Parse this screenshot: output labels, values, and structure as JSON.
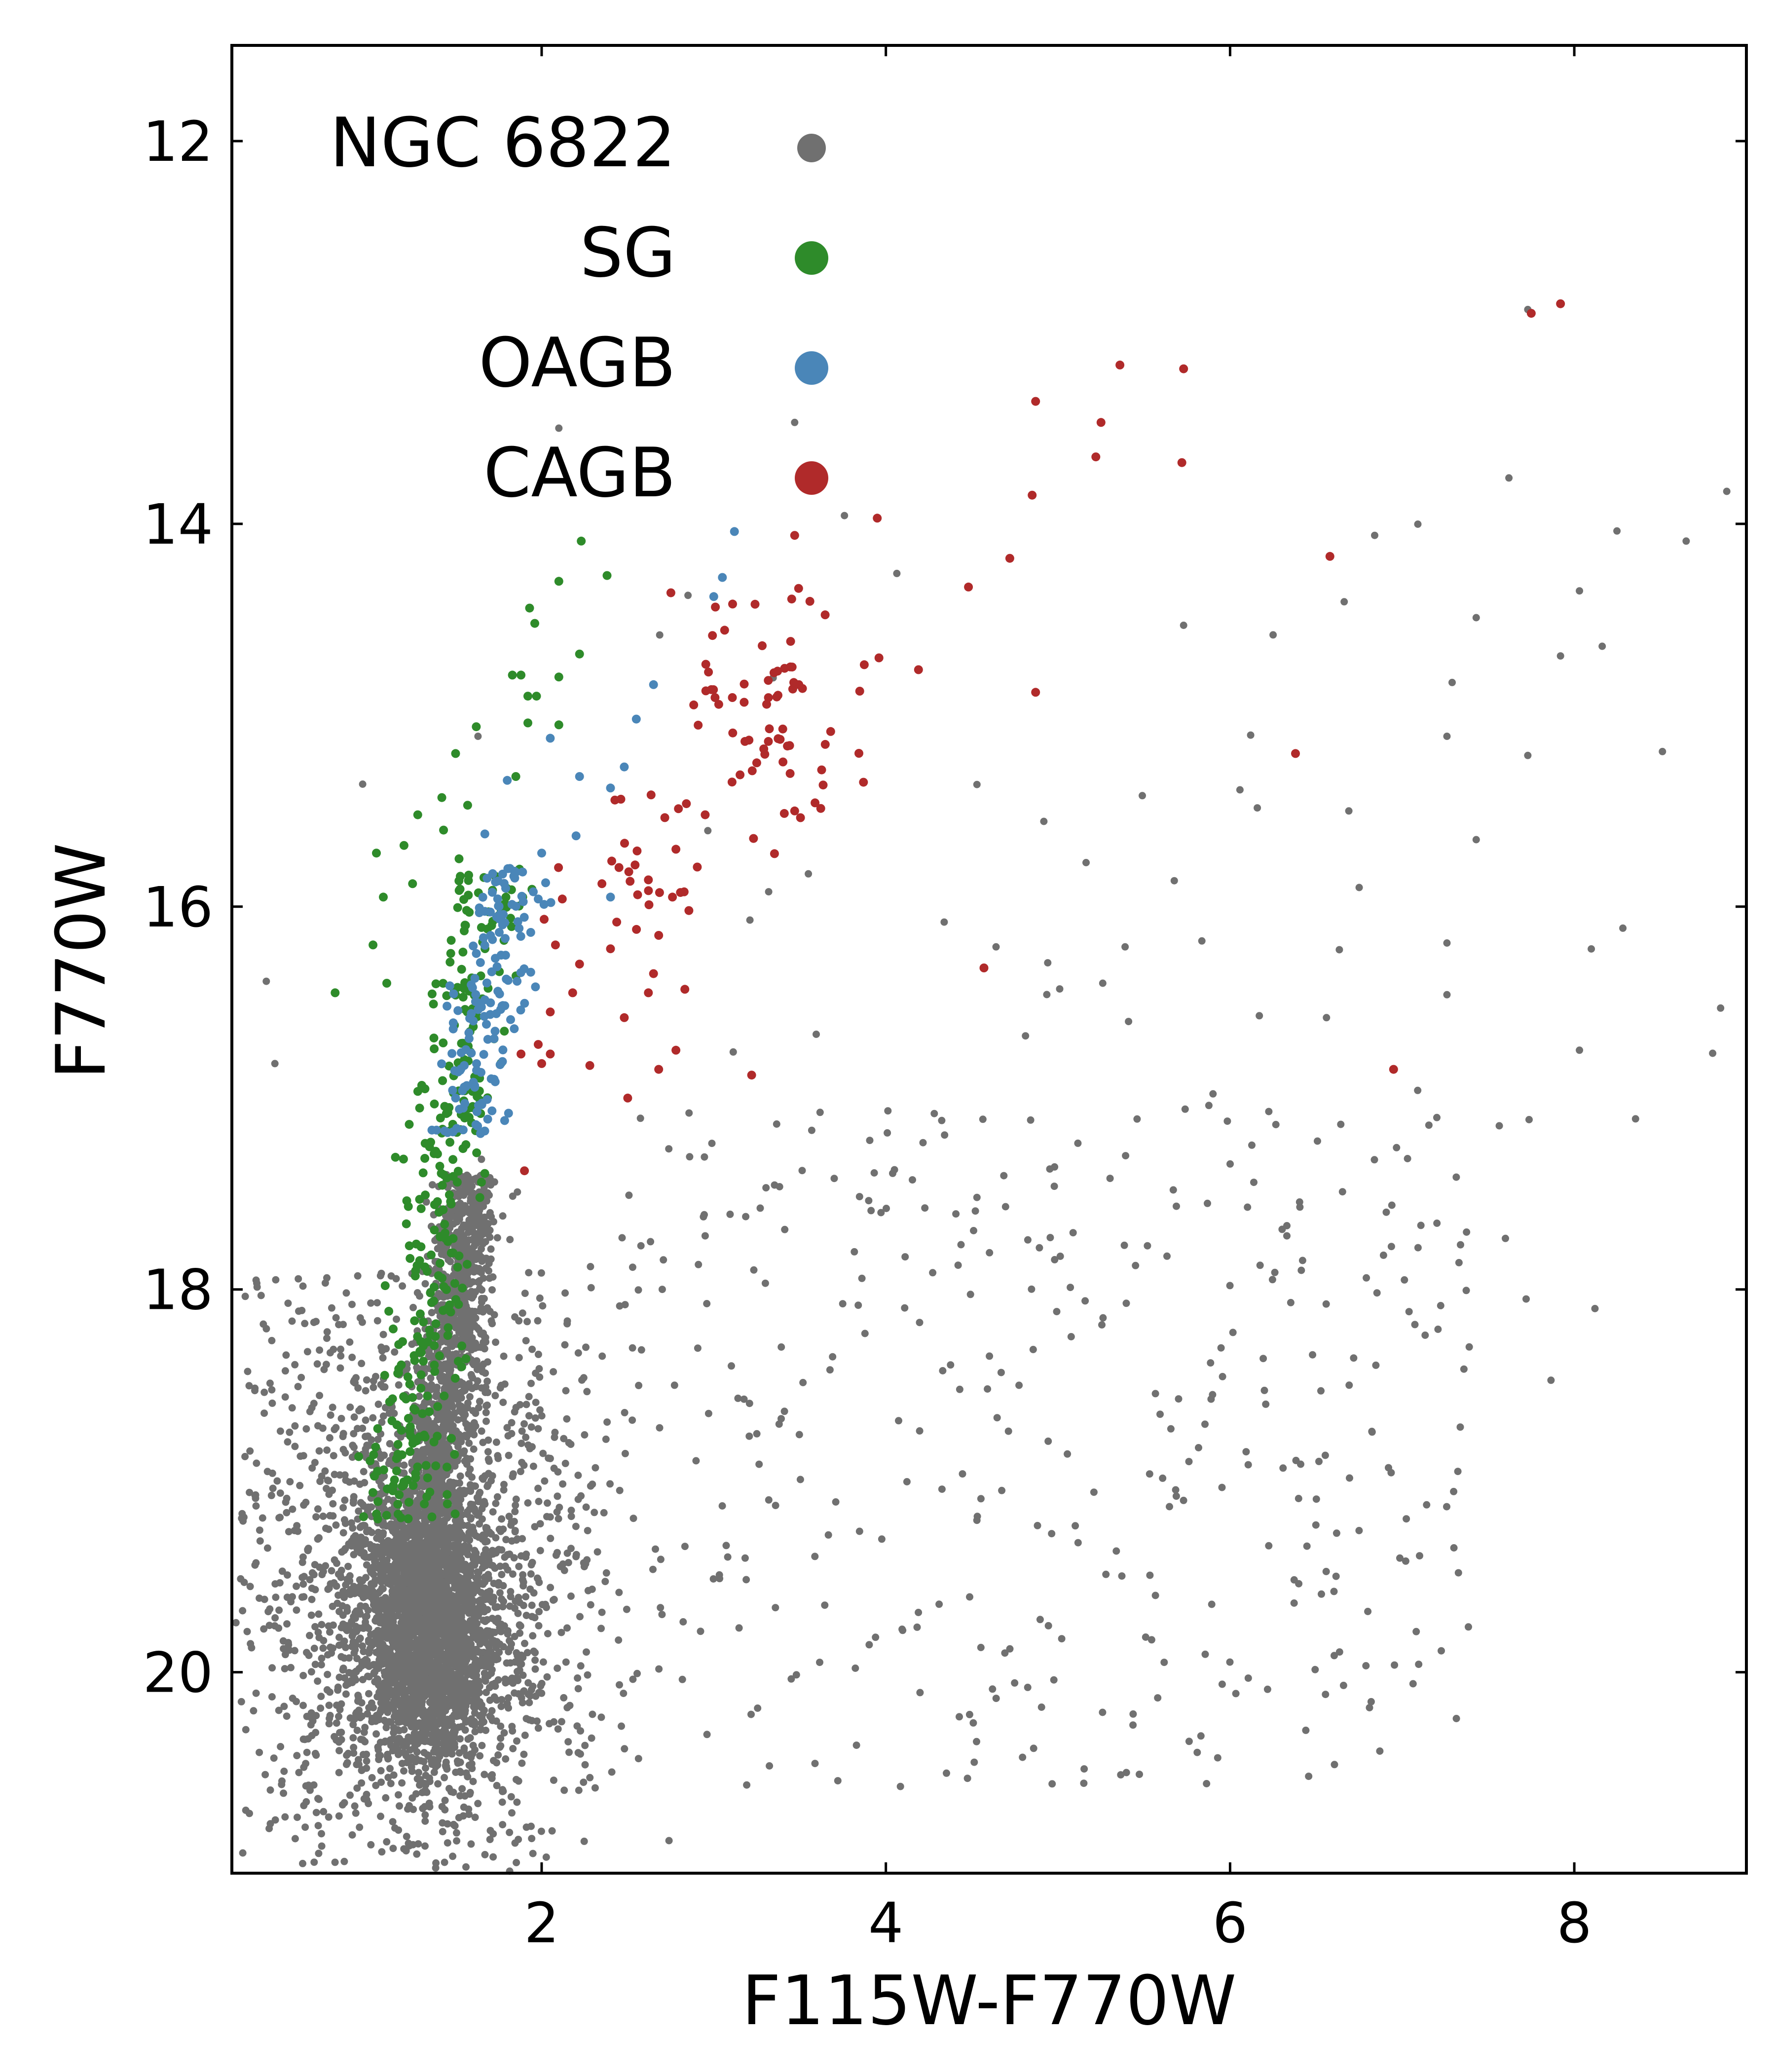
{
  "chart_data": {
    "type": "scatter",
    "title": "",
    "xlabel": "F115W-F770W",
    "ylabel": "F770W",
    "xlim": [
      0.2,
      9.0
    ],
    "ylim": [
      21.05,
      11.5
    ],
    "y_inverted": true,
    "xticks": [
      2,
      4,
      6,
      8
    ],
    "yticks": [
      12,
      14,
      16,
      18,
      20
    ],
    "grid": false,
    "legend_position": "top-left",
    "colors": {
      "NGC 6822": "#707070",
      "SG": "#2e8b2a",
      "OAGB": "#4a86b8",
      "CAGB": "#b02a2a",
      "axis": "#000000"
    },
    "series": [
      {
        "name": "NGC 6822",
        "approx_count": 6000,
        "regions": [
          {
            "kind": "core",
            "x_mean": 1.35,
            "x_sd": 0.2,
            "y_mean": 19.8,
            "y_sd": 0.35,
            "n": 2200
          },
          {
            "kind": "branch",
            "x_from": 1.6,
            "y_from": 17.4,
            "x_to": 1.3,
            "y_to": 19.6,
            "x_sd": 0.09,
            "n": 1300
          },
          {
            "kind": "halo",
            "x_mean": 1.3,
            "x_sd": 0.45,
            "y_mean": 19.6,
            "y_sd": 0.6,
            "n": 1300
          },
          {
            "kind": "uniform",
            "x_range": [
              0.25,
              2.3
            ],
            "y_range": [
              17.9,
              21.0
            ],
            "n": 450
          },
          {
            "kind": "uniform",
            "x_range": [
              2.2,
              7.4
            ],
            "y_range": [
              17.0,
              20.6
            ],
            "n": 380
          },
          {
            "kind": "uniform",
            "x_range": [
              2.5,
              8.9
            ],
            "y_range": [
              13.6,
              18.6
            ],
            "n": 60
          }
        ],
        "points": [
          [
            7.73,
            12.88
          ],
          [
            8.65,
            14.09
          ],
          [
            8.03,
            14.35
          ],
          [
            7.43,
            14.49
          ],
          [
            6.25,
            14.58
          ],
          [
            7.92,
            14.69
          ],
          [
            5.73,
            14.53
          ],
          [
            7.26,
            15.11
          ],
          [
            7.73,
            15.21
          ],
          [
            5.49,
            15.42
          ],
          [
            6.69,
            15.5
          ],
          [
            7.43,
            15.65
          ],
          [
            6.75,
            15.9
          ],
          [
            7.26,
            16.19
          ],
          [
            8.85,
            16.53
          ],
          [
            7.26,
            16.46
          ],
          [
            6.56,
            16.58
          ],
          [
            6.17,
            16.57
          ],
          [
            7.09,
            16.96
          ],
          [
            8.03,
            16.75
          ],
          [
            1.63,
            15.11
          ],
          [
            3.47,
            13.47
          ],
          [
            2.1,
            13.5
          ],
          [
            7.62,
            13.76
          ],
          [
            6.84,
            14.06
          ],
          [
            5.39,
            16.21
          ],
          [
            5.01,
            16.43
          ],
          [
            5.26,
            16.4
          ],
          [
            5.41,
            16.6
          ],
          [
            4.64,
            16.21
          ],
          [
            3.21,
            16.07
          ],
          [
            2.95,
            17.72
          ],
          [
            4.52,
            17.59
          ],
          [
            2.74,
            20.88
          ],
          [
            5.15,
            20.58
          ],
          [
            1.85,
            21.05
          ],
          [
            0.4,
            16.39
          ],
          [
            0.45,
            16.82
          ],
          [
            0.96,
            15.36
          ],
          [
            1.65,
            17.32
          ],
          [
            3.7,
            17.42
          ],
          [
            4.98,
            17.36
          ],
          [
            5.67,
            17.48
          ],
          [
            6.33,
            17.72
          ],
          [
            6.94,
            17.56
          ],
          [
            7.33,
            17.86
          ],
          [
            7.72,
            18.05
          ],
          [
            8.12,
            18.1
          ]
        ]
      },
      {
        "name": "SG",
        "approx_count": 420,
        "regions": [
          {
            "kind": "band",
            "x_top": 1.7,
            "y_top": 15.8,
            "x_bottom": 1.18,
            "y_bottom": 19.2,
            "x_sd": 0.12,
            "n": 330
          }
        ],
        "points": [
          [
            2.23,
            14.09
          ],
          [
            2.38,
            14.27
          ],
          [
            2.1,
            14.3
          ],
          [
            1.93,
            14.44
          ],
          [
            1.96,
            14.52
          ],
          [
            2.22,
            14.68
          ],
          [
            1.83,
            14.79
          ],
          [
            1.88,
            14.79
          ],
          [
            2.1,
            14.8
          ],
          [
            1.97,
            14.9
          ],
          [
            1.92,
            14.9
          ],
          [
            1.62,
            15.06
          ],
          [
            1.92,
            15.04
          ],
          [
            2.1,
            15.05
          ],
          [
            1.5,
            15.2
          ],
          [
            1.42,
            15.43
          ],
          [
            1.57,
            15.47
          ],
          [
            1.85,
            15.32
          ],
          [
            1.28,
            15.52
          ],
          [
            1.43,
            15.6
          ],
          [
            1.52,
            15.75
          ],
          [
            1.04,
            15.72
          ],
          [
            1.08,
            15.95
          ],
          [
            1.25,
            15.88
          ],
          [
            1.2,
            15.68
          ],
          [
            0.8,
            16.45
          ],
          [
            1.1,
            16.4
          ],
          [
            1.02,
            16.2
          ]
        ]
      },
      {
        "name": "OAGB",
        "approx_count": 190,
        "regions": [
          {
            "kind": "band",
            "x_top": 1.85,
            "y_top": 15.8,
            "x_bottom": 1.55,
            "y_bottom": 17.2,
            "x_sd": 0.1,
            "n": 150
          }
        ],
        "points": [
          [
            3.12,
            14.04
          ],
          [
            3.05,
            14.28
          ],
          [
            3.0,
            14.38
          ],
          [
            2.65,
            14.84
          ],
          [
            2.55,
            15.02
          ],
          [
            2.05,
            15.12
          ],
          [
            2.22,
            15.32
          ],
          [
            2.48,
            15.27
          ],
          [
            2.4,
            15.38
          ],
          [
            1.8,
            15.34
          ],
          [
            1.67,
            15.62
          ],
          [
            2.2,
            15.63
          ],
          [
            2.4,
            15.95
          ],
          [
            2.0,
            15.72
          ],
          [
            1.85,
            15.82
          ],
          [
            1.98,
            15.96
          ],
          [
            1.45,
            16.52
          ],
          [
            1.55,
            16.83
          ],
          [
            1.5,
            17.0
          ]
        ]
      },
      {
        "name": "CAGB",
        "approx_count": 175,
        "regions": [
          {
            "kind": "cloud",
            "x_mean": 3.35,
            "x_sd": 0.3,
            "y_mean": 15.0,
            "y_sd": 0.35,
            "n": 70
          },
          {
            "kind": "cloud",
            "x_mean": 2.55,
            "x_sd": 0.22,
            "y_mean": 15.75,
            "y_sd": 0.22,
            "n": 25
          }
        ],
        "points": [
          [
            7.92,
            12.85
          ],
          [
            7.75,
            12.9
          ],
          [
            5.73,
            13.19
          ],
          [
            5.36,
            13.17
          ],
          [
            4.87,
            13.36
          ],
          [
            5.25,
            13.47
          ],
          [
            5.22,
            13.65
          ],
          [
            5.72,
            13.68
          ],
          [
            4.85,
            13.85
          ],
          [
            3.95,
            13.97
          ],
          [
            3.47,
            14.06
          ],
          [
            4.72,
            14.18
          ],
          [
            6.58,
            14.17
          ],
          [
            4.48,
            14.33
          ],
          [
            3.24,
            14.42
          ],
          [
            3.96,
            14.7
          ],
          [
            4.87,
            14.88
          ],
          [
            6.38,
            15.2
          ],
          [
            3.47,
            15.5
          ],
          [
            3.87,
            15.35
          ],
          [
            2.95,
            15.52
          ],
          [
            2.78,
            15.7
          ],
          [
            2.76,
            15.95
          ],
          [
            2.12,
            15.96
          ],
          [
            2.35,
            15.88
          ],
          [
            2.62,
            15.86
          ],
          [
            2.68,
            16.15
          ],
          [
            2.08,
            16.2
          ],
          [
            2.4,
            16.22
          ],
          [
            2.22,
            16.3
          ],
          [
            2.65,
            16.35
          ],
          [
            2.18,
            16.45
          ],
          [
            2.48,
            16.58
          ],
          [
            2.62,
            16.45
          ],
          [
            4.57,
            16.32
          ],
          [
            2.05,
            16.55
          ],
          [
            1.98,
            16.72
          ],
          [
            1.88,
            16.77
          ],
          [
            2.0,
            16.82
          ],
          [
            2.05,
            16.77
          ],
          [
            2.28,
            16.83
          ],
          [
            2.78,
            16.75
          ],
          [
            2.68,
            16.85
          ],
          [
            3.22,
            16.88
          ],
          [
            2.5,
            17.0
          ],
          [
            6.95,
            16.85
          ],
          [
            1.9,
            17.38
          ]
        ]
      }
    ],
    "legend": [
      {
        "label": "NGC 6822",
        "series": "NGC 6822"
      },
      {
        "label": "SG",
        "series": "SG"
      },
      {
        "label": "OAGB",
        "series": "OAGB"
      },
      {
        "label": "CAGB",
        "series": "CAGB"
      }
    ]
  }
}
